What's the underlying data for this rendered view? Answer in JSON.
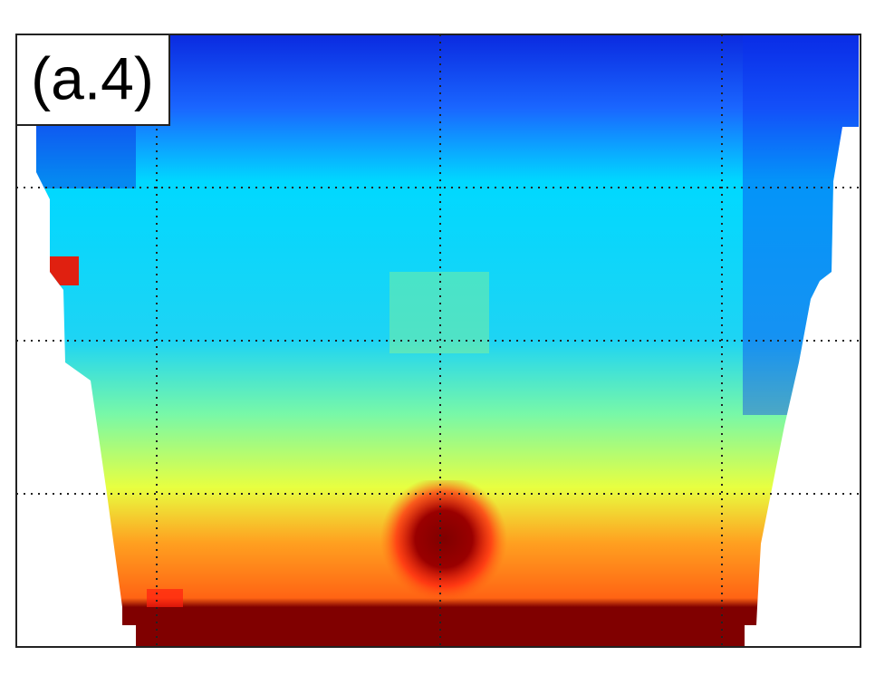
{
  "panel": {
    "label": "(a.4)"
  }
}
